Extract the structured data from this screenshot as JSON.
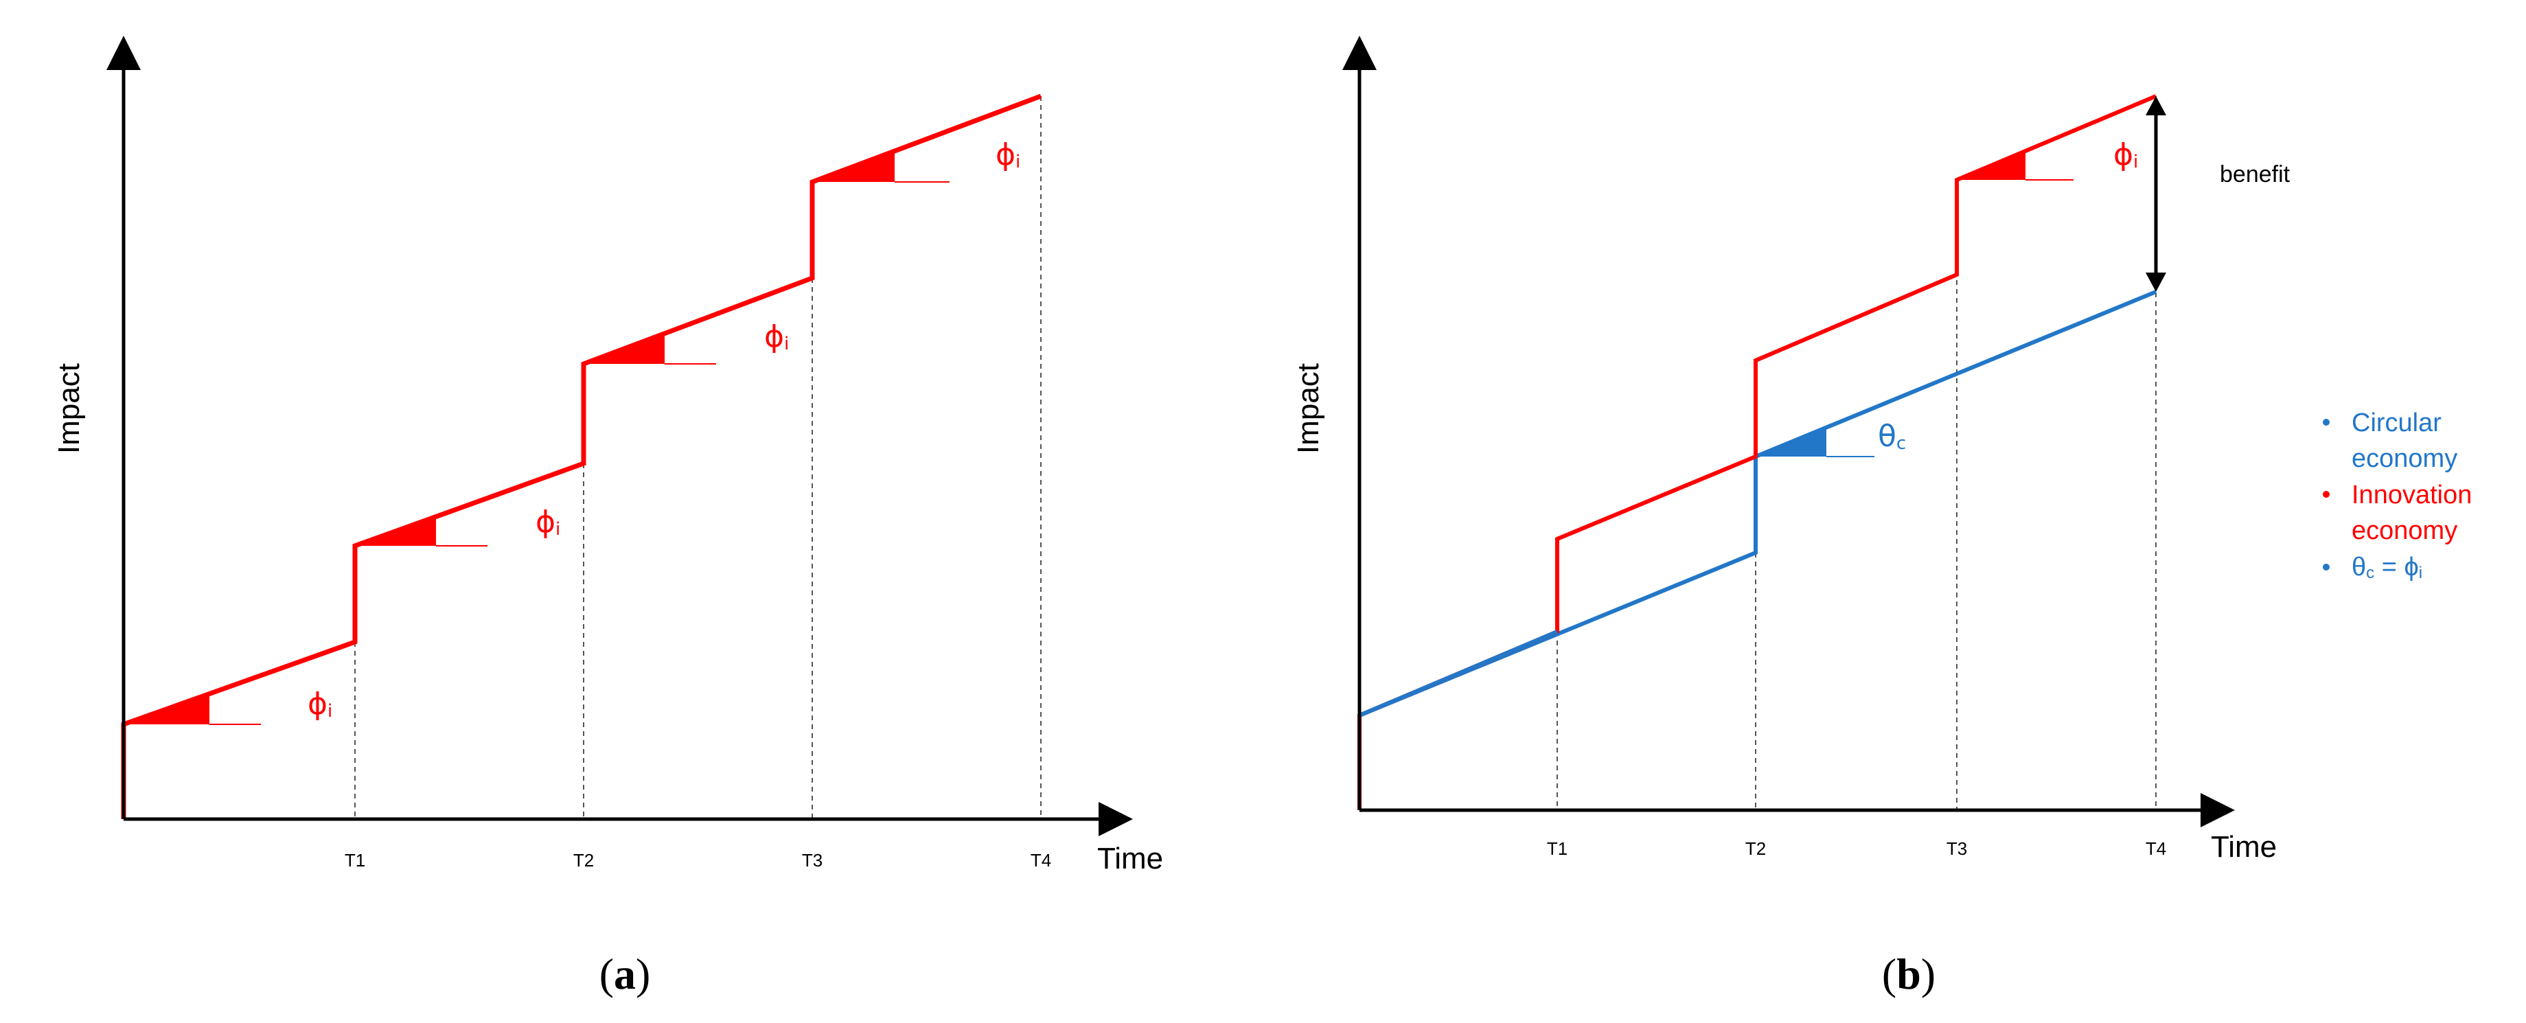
{
  "colors": {
    "innovation": "#ff0000",
    "circular": "#2277c8",
    "axis": "#000000",
    "guide": "#555555"
  },
  "panel_a": {
    "label": "a",
    "y_axis_label": "Impact",
    "x_axis_label": "Time",
    "ticks": [
      "T1",
      "T2",
      "T3",
      "T4"
    ],
    "slope_labels": [
      "ϕ",
      "ϕ",
      "ϕ",
      "ϕ"
    ],
    "slope_subscript": "i"
  },
  "panel_b": {
    "label": "b",
    "y_axis_label": "Impact",
    "x_axis_label": "Time",
    "ticks": [
      "T1",
      "T2",
      "T3",
      "T4"
    ],
    "innovation_slope_label": "ϕ",
    "innovation_slope_subscript": "i",
    "circular_slope_label": "θ",
    "circular_slope_subscript": "c",
    "benefit_label": "benefit"
  },
  "legend": {
    "items": [
      {
        "lines": [
          "Circular",
          "economy"
        ],
        "color": "#2277c8"
      },
      {
        "lines": [
          "Innovation",
          "economy"
        ],
        "color": "#ff0000"
      }
    ],
    "equation": {
      "theta": "θ",
      "theta_sub": "c",
      "equals": " = ",
      "phi": "ϕ",
      "phi_sub": "i",
      "color": "#2277c8"
    }
  }
}
